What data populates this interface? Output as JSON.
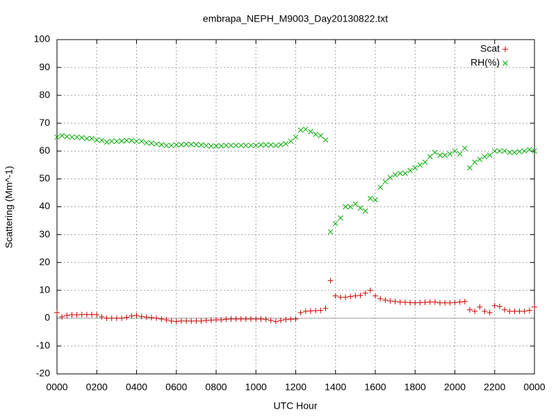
{
  "chart_data": {
    "type": "scatter",
    "title": "embrapa_NEPH_M9003_Day20130822.txt",
    "x_label": "UTC Hour",
    "y_label": "Scattering (Mm^-1)",
    "xlim": [
      0,
      24
    ],
    "xticks": [
      {
        "value": 0,
        "label": "0000"
      },
      {
        "value": 2,
        "label": "0200"
      },
      {
        "value": 4,
        "label": "0400"
      },
      {
        "value": 6,
        "label": "0600"
      },
      {
        "value": 8,
        "label": "0800"
      },
      {
        "value": 10,
        "label": "1000"
      },
      {
        "value": 12,
        "label": "1200"
      },
      {
        "value": 14,
        "label": "1400"
      },
      {
        "value": 16,
        "label": "1600"
      },
      {
        "value": 18,
        "label": "1800"
      },
      {
        "value": 20,
        "label": "2000"
      },
      {
        "value": 22,
        "label": "2200"
      },
      {
        "value": 24,
        "label": "0000"
      }
    ],
    "ylim": [
      -20,
      100
    ],
    "yticks": [
      -20,
      -10,
      0,
      10,
      20,
      30,
      40,
      50,
      60,
      70,
      80,
      90,
      100
    ],
    "grid": true,
    "legend": "top-right",
    "x": [
      0,
      0.25,
      0.5,
      0.75,
      1,
      1.25,
      1.5,
      1.75,
      2,
      2.25,
      2.5,
      2.75,
      3,
      3.25,
      3.5,
      3.75,
      4,
      4.25,
      4.5,
      4.75,
      5,
      5.25,
      5.5,
      5.75,
      6,
      6.25,
      6.5,
      6.75,
      7,
      7.25,
      7.5,
      7.75,
      8,
      8.25,
      8.5,
      8.75,
      9,
      9.25,
      9.5,
      9.75,
      10,
      10.25,
      10.5,
      10.75,
      11,
      11.25,
      11.5,
      11.75,
      12,
      12.25,
      12.5,
      12.75,
      13,
      13.25,
      13.5,
      13.75,
      14,
      14.25,
      14.5,
      14.75,
      15,
      15.25,
      15.5,
      15.75,
      16,
      16.25,
      16.5,
      16.75,
      17,
      17.25,
      17.5,
      17.75,
      18,
      18.25,
      18.5,
      18.75,
      19,
      19.25,
      19.5,
      19.75,
      20,
      20.25,
      20.5,
      20.75,
      21,
      21.25,
      21.5,
      21.75,
      22,
      22.25,
      22.5,
      22.75,
      23,
      23.25,
      23.5,
      23.75,
      24
    ],
    "series": [
      {
        "name": "Scat",
        "color": "#cc0000",
        "marker": "plus",
        "values": [
          2,
          0.5,
          1,
          1.2,
          1.2,
          1.3,
          1.3,
          1.3,
          1.2,
          0.5,
          0,
          0,
          0,
          0,
          0.3,
          0.8,
          1,
          0.6,
          0.4,
          0.2,
          0,
          -0.3,
          -0.6,
          -1,
          -1.2,
          -1,
          -1,
          -1,
          -1,
          -1,
          -0.8,
          -0.7,
          -0.6,
          -0.6,
          -0.4,
          -0.3,
          -0.3,
          -0.3,
          -0.3,
          -0.3,
          -0.3,
          -0.3,
          -0.4,
          -0.8,
          -1.2,
          -0.8,
          -0.5,
          -0.4,
          -0.3,
          2,
          2.5,
          2.6,
          2.7,
          2.8,
          3.5,
          13.5,
          8,
          7.5,
          7.5,
          7.8,
          8,
          8.2,
          9,
          10,
          8,
          7,
          6.5,
          6.2,
          6,
          5.8,
          5.7,
          5.6,
          5.5,
          5.6,
          5.7,
          5.8,
          5.8,
          5.5,
          5.5,
          5.5,
          5.6,
          5.8,
          6,
          3,
          2.5,
          4,
          2.5,
          2,
          4.5,
          4.2,
          3,
          2.5,
          2.5,
          2.5,
          2.5,
          2.8,
          4
        ]
      },
      {
        "name": "RH(%)",
        "color": "#00aa00",
        "marker": "cross",
        "values": [
          65,
          65.5,
          65.2,
          65,
          65,
          64.8,
          64.5,
          64.5,
          64,
          63.8,
          63.2,
          63.5,
          63.5,
          63.6,
          63.8,
          63.8,
          63.5,
          63.5,
          63,
          62.8,
          62.5,
          62.3,
          62,
          62,
          62.2,
          62.3,
          62.4,
          62.4,
          62.3,
          62.2,
          62,
          61.8,
          61.8,
          61.9,
          62,
          62,
          62,
          62,
          62,
          62,
          62,
          62.2,
          62.2,
          62.2,
          62,
          62.3,
          62.6,
          63.5,
          65,
          67.5,
          67.8,
          67,
          66,
          65.5,
          64,
          31,
          34,
          36,
          40,
          40,
          41,
          39.5,
          38.5,
          43,
          42.5,
          47,
          49,
          50.5,
          51.5,
          52,
          52,
          53,
          54,
          55,
          56,
          58,
          59.5,
          58.5,
          58.5,
          59,
          60,
          59,
          61,
          54,
          56,
          57,
          58,
          58.5,
          60,
          60,
          60,
          59.5,
          59.5,
          59.8,
          60,
          60.5,
          60
        ]
      }
    ]
  }
}
